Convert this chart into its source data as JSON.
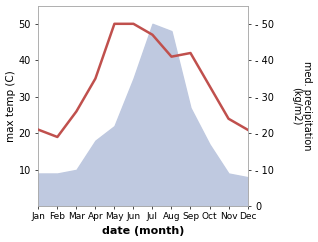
{
  "months": [
    "Jan",
    "Feb",
    "Mar",
    "Apr",
    "May",
    "Jun",
    "Jul",
    "Aug",
    "Sep",
    "Oct",
    "Nov",
    "Dec"
  ],
  "x": [
    1,
    2,
    3,
    4,
    5,
    6,
    7,
    8,
    9,
    10,
    11,
    12
  ],
  "temperature": [
    21,
    19,
    26,
    35,
    50,
    50,
    47,
    41,
    42,
    33,
    24,
    21
  ],
  "precipitation": [
    9,
    9,
    10,
    18,
    22,
    35,
    50,
    48,
    27,
    17,
    9,
    8
  ],
  "temp_color": "#c0504d",
  "precip_fill_color": "#bfc9e0",
  "ylabel_left": "max temp (C)",
  "ylabel_right": "med. precipitation\n(kg/m2)",
  "xlabel": "date (month)",
  "ylim_left": [
    0,
    55
  ],
  "ylim_right": [
    0,
    55
  ],
  "yticks_left": [
    10,
    20,
    30,
    40,
    50
  ],
  "yticks_right": [
    0,
    10,
    20,
    30,
    40,
    50
  ],
  "bg_color": "#ffffff",
  "line_width": 1.8
}
